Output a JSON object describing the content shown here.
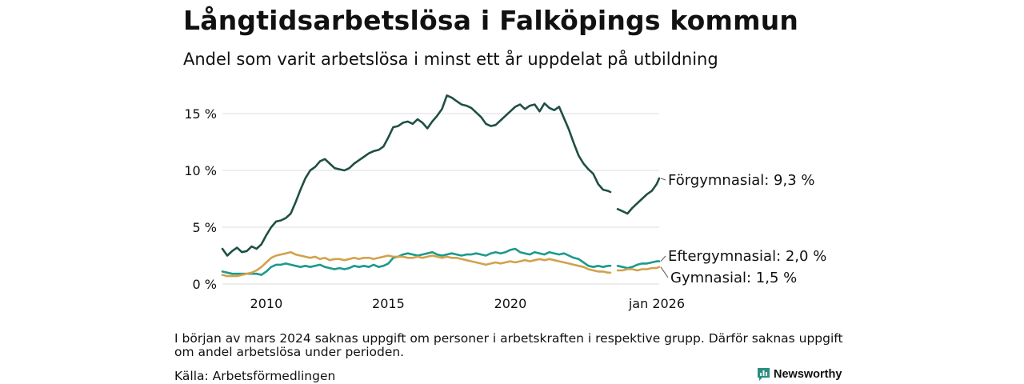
{
  "header": {
    "title": "Långtidsarbetslösa i Falköpings kommun",
    "subtitle": "Andel som varit arbetslösa i minst ett år uppdelat på utbildning"
  },
  "footer": {
    "note": "I början av mars 2024 saknas uppgift om personer i arbetskraften i respektive grupp. Därför saknas uppgift om andel arbetslösa under perioden.",
    "source": "Källa: Arbetsförmedlingen",
    "brand": "Newsworthy"
  },
  "colors": {
    "forgymnasial": "#1f4f45",
    "eftergymnasial": "#1b9a8c",
    "gymnasial": "#d2a24c",
    "grid": "#dcdcdc",
    "brand": "#2a8f80"
  },
  "chart_data": {
    "type": "line",
    "x_unit": "year (decimal)",
    "xlim": [
      2008.2,
      2026.1
    ],
    "ylim": [
      0,
      17
    ],
    "y_ticks": [
      {
        "value": 0,
        "label": "0 %"
      },
      {
        "value": 5,
        "label": "5 %"
      },
      {
        "value": 10,
        "label": "10 %"
      },
      {
        "value": 15,
        "label": "15 %"
      }
    ],
    "x_ticks": [
      {
        "value": 2010,
        "label": "2010"
      },
      {
        "value": 2015,
        "label": "2015"
      },
      {
        "value": 2020,
        "label": "2020"
      },
      {
        "value": 2026,
        "label": "jan 2026"
      }
    ],
    "gap": [
      2024.1,
      2024.4
    ],
    "series": [
      {
        "name": "Förgymnasial",
        "end_label": "Förgymnasial: 9,3 %",
        "color_key": "forgymnasial",
        "x": [
          2008.2,
          2008.4,
          2008.6,
          2008.8,
          2009.0,
          2009.2,
          2009.4,
          2009.6,
          2009.8,
          2010.0,
          2010.2,
          2010.4,
          2010.6,
          2010.8,
          2011.0,
          2011.2,
          2011.4,
          2011.6,
          2011.8,
          2012.0,
          2012.2,
          2012.4,
          2012.6,
          2012.8,
          2013.0,
          2013.2,
          2013.4,
          2013.6,
          2013.8,
          2014.0,
          2014.2,
          2014.4,
          2014.6,
          2014.8,
          2015.0,
          2015.2,
          2015.4,
          2015.6,
          2015.8,
          2016.0,
          2016.2,
          2016.4,
          2016.6,
          2016.8,
          2017.0,
          2017.2,
          2017.4,
          2017.6,
          2017.8,
          2018.0,
          2018.2,
          2018.4,
          2018.6,
          2018.8,
          2019.0,
          2019.2,
          2019.4,
          2019.6,
          2019.8,
          2020.0,
          2020.2,
          2020.4,
          2020.6,
          2020.8,
          2021.0,
          2021.2,
          2021.4,
          2021.6,
          2021.8,
          2022.0,
          2022.2,
          2022.4,
          2022.6,
          2022.8,
          2023.0,
          2023.2,
          2023.4,
          2023.6,
          2023.8,
          2024.0,
          2024.1,
          2024.4,
          2024.6,
          2024.8,
          2025.0,
          2025.2,
          2025.4,
          2025.6,
          2025.8,
          2026.0,
          2026.1
        ],
        "y": [
          3.1,
          2.5,
          2.9,
          3.2,
          2.8,
          2.9,
          3.3,
          3.1,
          3.5,
          4.3,
          5.0,
          5.5,
          5.6,
          5.8,
          6.2,
          7.2,
          8.3,
          9.3,
          10.0,
          10.3,
          10.8,
          11.0,
          10.6,
          10.2,
          10.1,
          10.0,
          10.2,
          10.6,
          10.9,
          11.2,
          11.5,
          11.7,
          11.8,
          12.1,
          12.9,
          13.8,
          13.9,
          14.2,
          14.3,
          14.1,
          14.5,
          14.2,
          13.7,
          14.3,
          14.8,
          15.4,
          16.6,
          16.4,
          16.1,
          15.8,
          15.7,
          15.5,
          15.1,
          14.7,
          14.1,
          13.9,
          14.0,
          14.4,
          14.8,
          15.2,
          15.6,
          15.8,
          15.4,
          15.7,
          15.8,
          15.2,
          15.9,
          15.5,
          15.3,
          15.6,
          14.6,
          13.6,
          12.4,
          11.3,
          10.6,
          10.1,
          9.7,
          8.8,
          8.3,
          8.2,
          8.1,
          6.6,
          6.4,
          6.2,
          6.7,
          7.1,
          7.5,
          7.9,
          8.2,
          8.8,
          9.3
        ]
      },
      {
        "name": "Eftergymnasial",
        "end_label": "Eftergymnasial: 2,0 %",
        "color_key": "eftergymnasial",
        "x": [
          2008.2,
          2008.4,
          2008.6,
          2008.8,
          2009.0,
          2009.2,
          2009.4,
          2009.6,
          2009.8,
          2010.0,
          2010.2,
          2010.4,
          2010.6,
          2010.8,
          2011.0,
          2011.2,
          2011.4,
          2011.6,
          2011.8,
          2012.0,
          2012.2,
          2012.4,
          2012.6,
          2012.8,
          2013.0,
          2013.2,
          2013.4,
          2013.6,
          2013.8,
          2014.0,
          2014.2,
          2014.4,
          2014.6,
          2014.8,
          2015.0,
          2015.2,
          2015.4,
          2015.6,
          2015.8,
          2016.0,
          2016.2,
          2016.4,
          2016.6,
          2016.8,
          2017.0,
          2017.2,
          2017.4,
          2017.6,
          2017.8,
          2018.0,
          2018.2,
          2018.4,
          2018.6,
          2018.8,
          2019.0,
          2019.2,
          2019.4,
          2019.6,
          2019.8,
          2020.0,
          2020.2,
          2020.4,
          2020.6,
          2020.8,
          2021.0,
          2021.2,
          2021.4,
          2021.6,
          2021.8,
          2022.0,
          2022.2,
          2022.4,
          2022.6,
          2022.8,
          2023.0,
          2023.2,
          2023.4,
          2023.6,
          2023.8,
          2024.0,
          2024.1,
          2024.4,
          2024.6,
          2024.8,
          2025.0,
          2025.2,
          2025.4,
          2025.6,
          2025.8,
          2026.0,
          2026.1
        ],
        "y": [
          1.1,
          1.0,
          0.9,
          0.9,
          0.9,
          0.9,
          0.9,
          0.9,
          0.8,
          1.1,
          1.5,
          1.7,
          1.7,
          1.8,
          1.7,
          1.6,
          1.5,
          1.6,
          1.5,
          1.6,
          1.7,
          1.5,
          1.4,
          1.3,
          1.4,
          1.3,
          1.4,
          1.6,
          1.5,
          1.6,
          1.5,
          1.7,
          1.5,
          1.6,
          1.8,
          2.3,
          2.4,
          2.6,
          2.7,
          2.6,
          2.5,
          2.6,
          2.7,
          2.8,
          2.6,
          2.5,
          2.6,
          2.7,
          2.6,
          2.5,
          2.6,
          2.6,
          2.7,
          2.6,
          2.5,
          2.7,
          2.8,
          2.7,
          2.8,
          3.0,
          3.1,
          2.8,
          2.7,
          2.6,
          2.8,
          2.7,
          2.6,
          2.8,
          2.7,
          2.6,
          2.7,
          2.5,
          2.3,
          2.2,
          1.9,
          1.6,
          1.5,
          1.6,
          1.5,
          1.6,
          1.6,
          1.6,
          1.5,
          1.4,
          1.5,
          1.7,
          1.8,
          1.8,
          1.9,
          2.0,
          2.0
        ]
      },
      {
        "name": "Gymnasial",
        "end_label": "Gymnasial: 1,5 %",
        "color_key": "gymnasial",
        "x": [
          2008.2,
          2008.4,
          2008.6,
          2008.8,
          2009.0,
          2009.2,
          2009.4,
          2009.6,
          2009.8,
          2010.0,
          2010.2,
          2010.4,
          2010.6,
          2010.8,
          2011.0,
          2011.2,
          2011.4,
          2011.6,
          2011.8,
          2012.0,
          2012.2,
          2012.4,
          2012.6,
          2012.8,
          2013.0,
          2013.2,
          2013.4,
          2013.6,
          2013.8,
          2014.0,
          2014.2,
          2014.4,
          2014.6,
          2014.8,
          2015.0,
          2015.2,
          2015.4,
          2015.6,
          2015.8,
          2016.0,
          2016.2,
          2016.4,
          2016.6,
          2016.8,
          2017.0,
          2017.2,
          2017.4,
          2017.6,
          2017.8,
          2018.0,
          2018.2,
          2018.4,
          2018.6,
          2018.8,
          2019.0,
          2019.2,
          2019.4,
          2019.6,
          2019.8,
          2020.0,
          2020.2,
          2020.4,
          2020.6,
          2020.8,
          2021.0,
          2021.2,
          2021.4,
          2021.6,
          2021.8,
          2022.0,
          2022.2,
          2022.4,
          2022.6,
          2022.8,
          2023.0,
          2023.2,
          2023.4,
          2023.6,
          2023.8,
          2024.0,
          2024.1,
          2024.4,
          2024.6,
          2024.8,
          2025.0,
          2025.2,
          2025.4,
          2025.6,
          2025.8,
          2026.0,
          2026.1
        ],
        "y": [
          0.8,
          0.7,
          0.7,
          0.7,
          0.8,
          0.9,
          1.0,
          1.2,
          1.5,
          1.9,
          2.3,
          2.5,
          2.6,
          2.7,
          2.8,
          2.6,
          2.5,
          2.4,
          2.3,
          2.4,
          2.2,
          2.3,
          2.1,
          2.2,
          2.2,
          2.1,
          2.2,
          2.3,
          2.2,
          2.3,
          2.3,
          2.2,
          2.3,
          2.4,
          2.5,
          2.4,
          2.4,
          2.4,
          2.3,
          2.3,
          2.4,
          2.3,
          2.4,
          2.5,
          2.4,
          2.3,
          2.4,
          2.3,
          2.3,
          2.2,
          2.1,
          2.0,
          1.9,
          1.8,
          1.7,
          1.8,
          1.9,
          1.8,
          1.9,
          2.0,
          1.9,
          2.0,
          2.1,
          2.0,
          2.1,
          2.2,
          2.1,
          2.2,
          2.1,
          2.0,
          1.9,
          1.8,
          1.7,
          1.6,
          1.5,
          1.3,
          1.2,
          1.1,
          1.1,
          1.0,
          1.0,
          1.2,
          1.2,
          1.3,
          1.3,
          1.2,
          1.3,
          1.3,
          1.4,
          1.4,
          1.5
        ]
      }
    ]
  }
}
